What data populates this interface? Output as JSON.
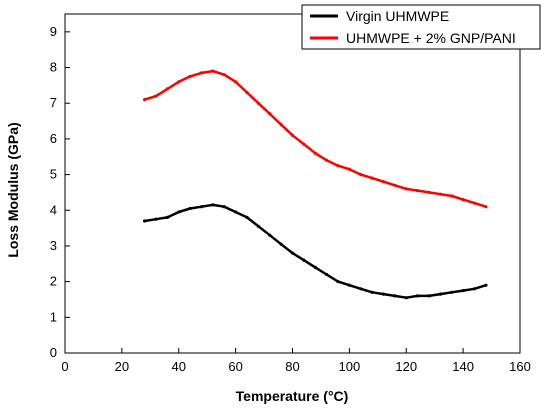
{
  "chart_data": {
    "type": "line",
    "xlabel": "Temperature (°C)",
    "ylabel": "Loss Modulus (GPa)",
    "xlim": [
      0,
      160
    ],
    "ylim": [
      0,
      9.5
    ],
    "xticks": [
      0,
      20,
      40,
      60,
      80,
      100,
      120,
      140,
      160
    ],
    "yticks": [
      0,
      1,
      2,
      3,
      4,
      5,
      6,
      7,
      8,
      9
    ],
    "grid": false,
    "legend_position": "top-right",
    "series": [
      {
        "name": "Virgin UHMWPE",
        "color": "#000000",
        "x": [
          28,
          32,
          36,
          40,
          44,
          48,
          52,
          56,
          60,
          64,
          68,
          72,
          76,
          80,
          84,
          88,
          92,
          96,
          100,
          104,
          108,
          112,
          116,
          120,
          124,
          128,
          132,
          136,
          140,
          144,
          148
        ],
        "values": [
          3.7,
          3.75,
          3.8,
          3.95,
          4.05,
          4.1,
          4.15,
          4.1,
          3.95,
          3.8,
          3.55,
          3.3,
          3.05,
          2.8,
          2.6,
          2.4,
          2.2,
          2.0,
          1.9,
          1.8,
          1.7,
          1.65,
          1.6,
          1.55,
          1.6,
          1.6,
          1.65,
          1.7,
          1.75,
          1.8,
          1.9
        ]
      },
      {
        "name": "UHMWPE + 2% GNP/PANI",
        "color": "#ff0000",
        "x": [
          28,
          32,
          36,
          40,
          44,
          48,
          52,
          56,
          60,
          64,
          68,
          72,
          76,
          80,
          84,
          88,
          92,
          96,
          100,
          104,
          108,
          112,
          116,
          120,
          124,
          128,
          132,
          136,
          140,
          144,
          148
        ],
        "values": [
          7.1,
          7.2,
          7.4,
          7.6,
          7.75,
          7.85,
          7.9,
          7.8,
          7.6,
          7.3,
          7.0,
          6.7,
          6.4,
          6.1,
          5.85,
          5.6,
          5.4,
          5.25,
          5.15,
          5.0,
          4.9,
          4.8,
          4.7,
          4.6,
          4.55,
          4.5,
          4.45,
          4.4,
          4.3,
          4.2,
          4.1
        ]
      }
    ]
  }
}
